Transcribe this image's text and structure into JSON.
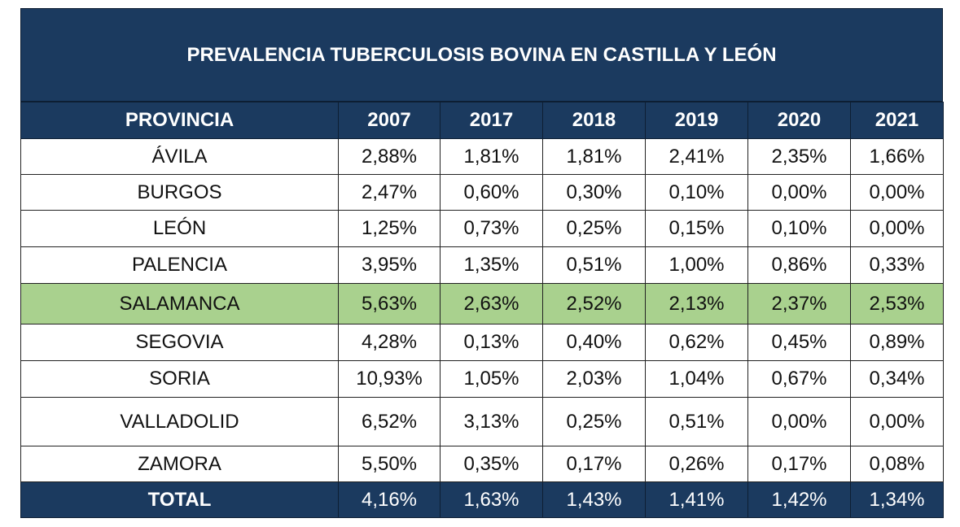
{
  "title": "PREVALENCIA TUBERCULOSIS BOVINA EN CASTILLA Y LEÓN",
  "headers": [
    "PROVINCIA",
    "2007",
    "2017",
    "2018",
    "2019",
    "2020",
    "2021"
  ],
  "rows": [
    {
      "provincia": "ÁVILA",
      "values": [
        "2,88%",
        "1,81%",
        "1,81%",
        "2,41%",
        "2,35%",
        "1,66%"
      ]
    },
    {
      "provincia": "BURGOS",
      "values": [
        "2,47%",
        "0,60%",
        "0,30%",
        "0,10%",
        "0,00%",
        "0,00%"
      ]
    },
    {
      "provincia": "LEÓN",
      "values": [
        "1,25%",
        "0,73%",
        "0,25%",
        "0,15%",
        "0,10%",
        "0,00%"
      ]
    },
    {
      "provincia": "PALENCIA",
      "values": [
        "3,95%",
        "1,35%",
        "0,51%",
        "1,00%",
        "0,86%",
        "0,33%"
      ]
    },
    {
      "provincia": "SALAMANCA",
      "values": [
        "5,63%",
        "2,63%",
        "2,52%",
        "2,13%",
        "2,37%",
        "2,53%"
      ],
      "highlight": true
    },
    {
      "provincia": "SEGOVIA",
      "values": [
        "4,28%",
        "0,13%",
        "0,40%",
        "0,62%",
        "0,45%",
        "0,89%"
      ]
    },
    {
      "provincia": "SORIA",
      "values": [
        "10,93%",
        "1,05%",
        "2,03%",
        "1,04%",
        "0,67%",
        "0,34%"
      ]
    },
    {
      "provincia": "VALLADOLID",
      "values": [
        "6,52%",
        "3,13%",
        "0,25%",
        "0,51%",
        "0,00%",
        "0,00%"
      ]
    },
    {
      "provincia": "ZAMORA",
      "values": [
        "5,50%",
        "0,35%",
        "0,17%",
        "0,26%",
        "0,17%",
        "0,08%"
      ]
    }
  ],
  "total": {
    "provincia": "TOTAL",
    "values": [
      "4,16%",
      "1,63%",
      "1,43%",
      "1,41%",
      "1,42%",
      "1,34%"
    ]
  },
  "colors": {
    "header": "#1b3a5f",
    "highlight": "#a9d18e"
  }
}
